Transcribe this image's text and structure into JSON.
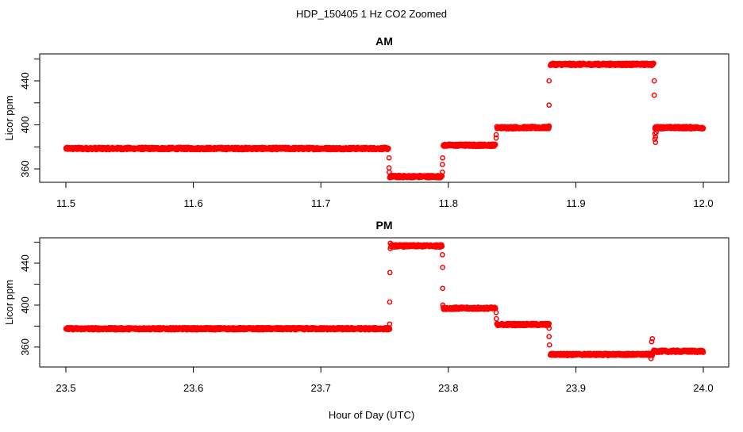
{
  "title": "HDP_150405  1 Hz CO2 Zoomed",
  "xlabel": "Hour of Day (UTC)",
  "chart_data": [
    {
      "type": "scatter",
      "title": "AM",
      "ylabel": "Licor ppm",
      "xlim": [
        11.5,
        12.0
      ],
      "ylim": [
        347.8,
        464.5
      ],
      "xticks": [
        "11.5",
        "11.6",
        "11.7",
        "11.8",
        "11.9",
        "12.0"
      ],
      "xtick_values": [
        11.5,
        11.6,
        11.7,
        11.8,
        11.9,
        12.0
      ],
      "yticks": [
        "360",
        "400",
        "440"
      ],
      "ytick_values": [
        360,
        380,
        400,
        420,
        440,
        460
      ],
      "color": "#ff0000",
      "segments": [
        {
          "start": 11.5,
          "end": 11.753,
          "level": 378.5
        },
        {
          "start": 11.754,
          "end": 11.795,
          "level": 353
        },
        {
          "start": 11.796,
          "end": 11.837,
          "level": 381.5
        },
        {
          "start": 11.838,
          "end": 11.879,
          "level": 397.5
        },
        {
          "start": 11.88,
          "end": 11.961,
          "level": 455
        },
        {
          "start": 11.962,
          "end": 12.0,
          "level": 397.5
        }
      ],
      "transition_points": [
        [
          11.7535,
          370
        ],
        [
          11.7535,
          361
        ],
        [
          11.7537,
          357
        ],
        [
          11.7953,
          357
        ],
        [
          11.7953,
          364
        ],
        [
          11.7955,
          370
        ],
        [
          11.8375,
          388
        ],
        [
          11.8375,
          391
        ],
        [
          11.879,
          399
        ],
        [
          11.879,
          418
        ],
        [
          11.879,
          440
        ],
        [
          11.961,
          456
        ],
        [
          11.9615,
          440
        ],
        [
          11.9615,
          427
        ],
        [
          11.962,
          392
        ],
        [
          11.962,
          387
        ],
        [
          11.9625,
          384
        ],
        [
          11.9625,
          389
        ],
        [
          11.963,
          393
        ]
      ]
    },
    {
      "type": "scatter",
      "title": "PM",
      "ylabel": "Licor ppm",
      "xlim": [
        23.5,
        24.0
      ],
      "ylim": [
        341,
        464.2
      ],
      "xticks": [
        "23.5",
        "23.6",
        "23.7",
        "23.8",
        "23.9",
        "24.0"
      ],
      "xtick_values": [
        23.5,
        23.6,
        23.7,
        23.8,
        23.9,
        24.0
      ],
      "yticks": [
        "360",
        "400",
        "440"
      ],
      "ytick_values": [
        360,
        380,
        400,
        420,
        440,
        460
      ],
      "color": "#ff0000",
      "segments": [
        {
          "start": 23.5,
          "end": 23.754,
          "level": 377.5
        },
        {
          "start": 23.755,
          "end": 23.795,
          "level": 456.5
        },
        {
          "start": 23.796,
          "end": 23.837,
          "level": 397
        },
        {
          "start": 23.838,
          "end": 23.879,
          "level": 381.5
        },
        {
          "start": 23.88,
          "end": 23.96,
          "level": 353
        },
        {
          "start": 23.961,
          "end": 24.0,
          "level": 356
        }
      ],
      "transition_points": [
        [
          23.754,
          382
        ],
        [
          23.754,
          403
        ],
        [
          23.7542,
          431
        ],
        [
          23.7545,
          454
        ],
        [
          23.7545,
          459
        ],
        [
          23.7953,
          448
        ],
        [
          23.7955,
          436
        ],
        [
          23.7955,
          416
        ],
        [
          23.7957,
          400
        ],
        [
          23.8375,
          393
        ],
        [
          23.8377,
          387
        ],
        [
          23.879,
          378
        ],
        [
          23.879,
          370
        ],
        [
          23.8793,
          362
        ],
        [
          23.959,
          349
        ],
        [
          23.9595,
          365
        ],
        [
          23.96,
          368
        ]
      ]
    }
  ]
}
